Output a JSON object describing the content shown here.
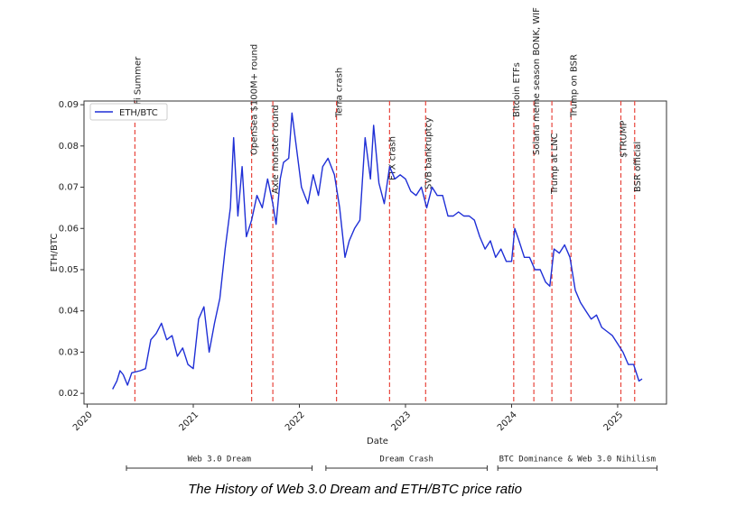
{
  "chart_data": {
    "type": "line",
    "caption": "The History of Web 3.0 Dream and ETH/BTC price ratio",
    "x_label": "Date",
    "y_label": "ETH/BTC",
    "legend": "upper left",
    "xlim": [
      2019.97,
      2025.46
    ],
    "xticks": [
      2020,
      2021,
      2022,
      2023,
      2024,
      2025
    ],
    "ylim": [
      0.0174,
      0.0909
    ],
    "yticks": [
      0.02,
      0.03,
      0.04,
      0.05,
      0.06,
      0.07,
      0.08,
      0.09
    ],
    "series": [
      {
        "name": "ETH/BTC",
        "color": "#1f2fd6",
        "x": [
          2020.24,
          2020.28,
          2020.31,
          2020.34,
          2020.38,
          2020.42,
          2020.5,
          2020.55,
          2020.6,
          2020.65,
          2020.7,
          2020.75,
          2020.8,
          2020.85,
          2020.9,
          2020.95,
          2021.0,
          2021.05,
          2021.1,
          2021.15,
          2021.2,
          2021.25,
          2021.3,
          2021.35,
          2021.38,
          2021.42,
          2021.46,
          2021.5,
          2021.55,
          2021.6,
          2021.65,
          2021.7,
          2021.75,
          2021.78,
          2021.82,
          2021.85,
          2021.9,
          2021.93,
          2021.97,
          2022.02,
          2022.08,
          2022.13,
          2022.18,
          2022.22,
          2022.27,
          2022.33,
          2022.38,
          2022.43,
          2022.47,
          2022.52,
          2022.57,
          2022.62,
          2022.67,
          2022.7,
          2022.75,
          2022.8,
          2022.85,
          2022.9,
          2022.95,
          2023.0,
          2023.05,
          2023.1,
          2023.15,
          2023.2,
          2023.25,
          2023.3,
          2023.35,
          2023.4,
          2023.45,
          2023.5,
          2023.55,
          2023.6,
          2023.65,
          2023.7,
          2023.75,
          2023.8,
          2023.85,
          2023.9,
          2023.95,
          2024.0,
          2024.03,
          2024.07,
          2024.12,
          2024.17,
          2024.22,
          2024.27,
          2024.32,
          2024.36,
          2024.4,
          2024.45,
          2024.5,
          2024.55,
          2024.6,
          2024.65,
          2024.7,
          2024.75,
          2024.8,
          2024.85,
          2024.9,
          2024.95,
          2025.0,
          2025.05,
          2025.1,
          2025.15,
          2025.2,
          2025.23
        ],
        "values": [
          0.021,
          0.023,
          0.0255,
          0.0245,
          0.022,
          0.025,
          0.0255,
          0.026,
          0.033,
          0.0345,
          0.037,
          0.033,
          0.034,
          0.029,
          0.031,
          0.027,
          0.026,
          0.038,
          0.041,
          0.03,
          0.037,
          0.043,
          0.055,
          0.065,
          0.082,
          0.063,
          0.075,
          0.058,
          0.062,
          0.068,
          0.065,
          0.072,
          0.066,
          0.061,
          0.072,
          0.076,
          0.077,
          0.088,
          0.08,
          0.07,
          0.066,
          0.073,
          0.068,
          0.075,
          0.077,
          0.073,
          0.065,
          0.053,
          0.057,
          0.06,
          0.062,
          0.082,
          0.072,
          0.085,
          0.071,
          0.066,
          0.075,
          0.072,
          0.073,
          0.072,
          0.069,
          0.068,
          0.07,
          0.065,
          0.07,
          0.068,
          0.068,
          0.063,
          0.063,
          0.064,
          0.063,
          0.063,
          0.062,
          0.058,
          0.055,
          0.057,
          0.053,
          0.055,
          0.052,
          0.052,
          0.06,
          0.057,
          0.053,
          0.053,
          0.05,
          0.05,
          0.047,
          0.046,
          0.055,
          0.054,
          0.056,
          0.053,
          0.045,
          0.042,
          0.04,
          0.038,
          0.039,
          0.036,
          0.035,
          0.034,
          0.032,
          0.03,
          0.027,
          0.027,
          0.023,
          0.0235
        ]
      }
    ],
    "events": [
      {
        "label": "DeFi Summer",
        "x": 2020.45
      },
      {
        "label": "OpenSea $100M+ round",
        "x": 2021.55
      },
      {
        "label": "Axie monster round",
        "x": 2021.75
      },
      {
        "label": "Terra crash",
        "x": 2022.35
      },
      {
        "label": "FTX crash",
        "x": 2022.85
      },
      {
        "label": "SVB bankruptcy",
        "x": 2023.19
      },
      {
        "label": "Bitcoin ETFs",
        "x": 2024.02
      },
      {
        "label": "Solana meme season BONK, WIF",
        "x": 2024.21
      },
      {
        "label": "Trump at LNC",
        "x": 2024.38
      },
      {
        "label": "Trump on BSR",
        "x": 2024.56
      },
      {
        "label": "$TRUMP",
        "x": 2025.03
      },
      {
        "label": "BSR official",
        "x": 2025.16
      }
    ],
    "event_color": "#e8453c",
    "eras": [
      {
        "label": "Web 3.0 Dream",
        "start": 2020.37,
        "end": 2022.12
      },
      {
        "label": "Dream Crash",
        "start": 2022.25,
        "end": 2023.77
      },
      {
        "label": "BTC Dominance & Web 3.0 Nihilism",
        "start": 2023.87,
        "end": 2025.37
      }
    ]
  }
}
